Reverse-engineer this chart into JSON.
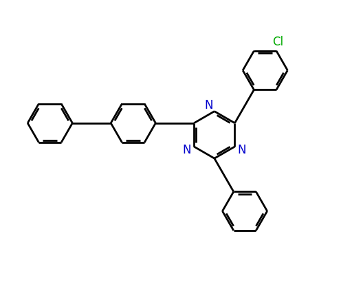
{
  "background": "#ffffff",
  "bond_color": "#000000",
  "N_color": "#0000cc",
  "Cl_color": "#00aa00",
  "lw": 2.0,
  "dbo": 0.08,
  "figsize": [
    5.12,
    4.31
  ],
  "dpi": 100,
  "xlim": [
    -0.5,
    10.5
  ],
  "ylim": [
    -0.5,
    8.5
  ]
}
